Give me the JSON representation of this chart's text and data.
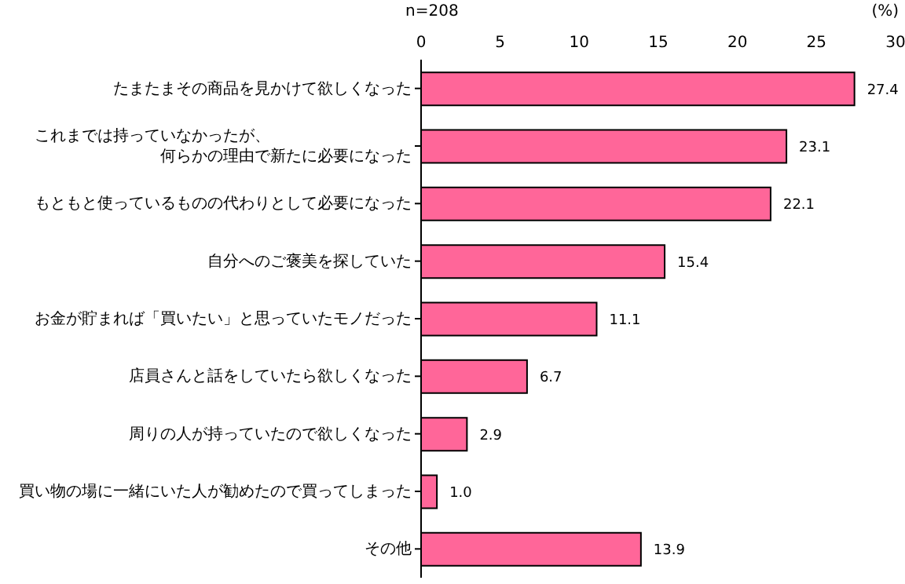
{
  "chart_data": {
    "type": "bar",
    "orientation": "horizontal",
    "xlabel": "(%)",
    "annotations": [
      "n=208"
    ],
    "categories": [
      "たまたまその商品を見かけて欲しくなった",
      "これまでは持っていなかったが、何らかの理由で新たに必要になった",
      "もともと使っているものの代わりとして必要になった",
      "自分へのご褒美を探していた",
      "お金が貯まれば「買いたい」と思っていたモノだった",
      "店員さんと話をしていたら欲しくなった",
      "周りの人が持っていたので欲しくなった",
      "買い物の場に一緒にいた人が勧めたので買ってしまった",
      "その他"
    ],
    "values": [
      27.4,
      23.1,
      22.1,
      15.4,
      11.1,
      6.7,
      2.9,
      1.0,
      13.9
    ],
    "value_labels": [
      "27.4",
      "23.1",
      "22.1",
      "15.4",
      "11.1",
      "6.7",
      "2.9",
      "1.0",
      "13.9"
    ],
    "color": "#ff6699",
    "xlim": [
      0,
      30
    ],
    "xticks": [
      0,
      5,
      10,
      15,
      20,
      25,
      30
    ],
    "grid": false
  }
}
